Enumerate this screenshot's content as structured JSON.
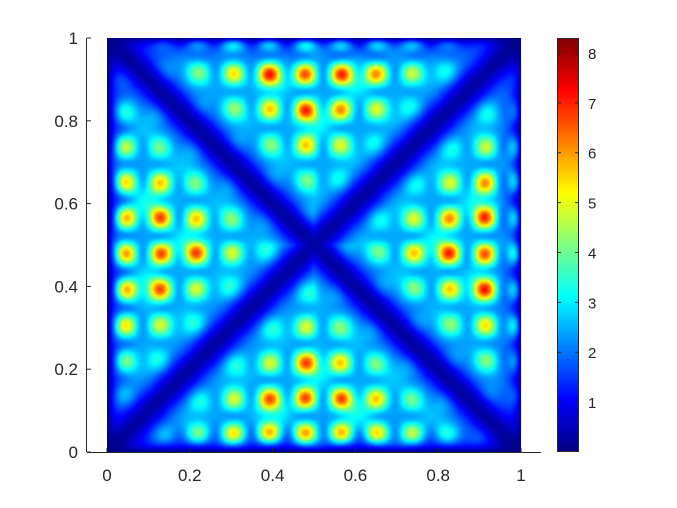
{
  "chart_data": {
    "type": "heatmap",
    "title": "",
    "xlabel": "",
    "ylabel": "",
    "xlim": [
      0,
      1
    ],
    "ylim": [
      0,
      1
    ],
    "x_ticks": [
      0,
      0.2,
      0.4,
      0.6,
      0.8,
      1
    ],
    "y_ticks": [
      0,
      0.2,
      0.4,
      0.6,
      0.8,
      1
    ],
    "x_tick_labels": [
      "0",
      "0.2",
      "0.4",
      "0.6",
      "0.8",
      "1"
    ],
    "y_tick_labels": [
      "0",
      "0.2",
      "0.4",
      "0.6",
      "0.8",
      "1"
    ],
    "colormap": "jet",
    "clim": [
      0,
      8.3
    ],
    "colorbar": {
      "position": "right",
      "ticks": [
        1,
        2,
        3,
        4,
        5,
        6,
        7,
        8
      ],
      "tick_labels": [
        "1",
        "2",
        "3",
        "4",
        "5",
        "6",
        "7",
        "8"
      ]
    },
    "grid": false
  }
}
